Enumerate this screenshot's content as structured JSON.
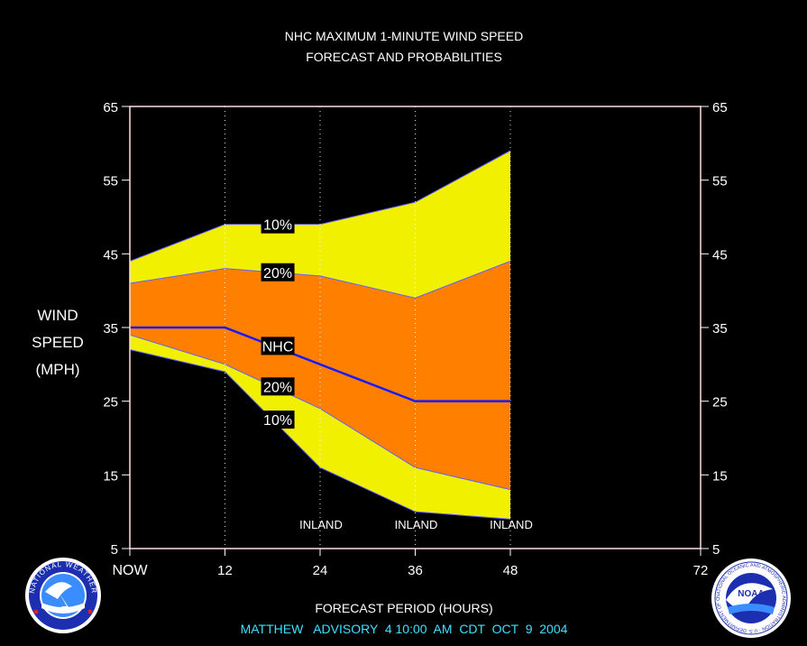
{
  "chart_data": {
    "type": "area",
    "title": "NHC MAXIMUM 1-MINUTE WIND SPEED",
    "subtitle": "FORECAST AND PROBABILITIES",
    "ylabel": [
      "WIND",
      "SPEED",
      "(MPH)"
    ],
    "xlabel": "FORECAST PERIOD (HOURS)",
    "footer": "MATTHEW   ADVISORY  4 10:00  AM  CDT  OCT  9  2004",
    "xlim": [
      0,
      72
    ],
    "ylim": [
      5,
      65
    ],
    "y_ticks": [
      5,
      15,
      25,
      35,
      45,
      55,
      65
    ],
    "x_ticks": [
      {
        "x": 0,
        "label": "NOW"
      },
      {
        "x": 12,
        "label": "12"
      },
      {
        "x": 24,
        "label": "24"
      },
      {
        "x": 36,
        "label": "36"
      },
      {
        "x": 48,
        "label": "48"
      },
      {
        "x": 72,
        "label": "72"
      }
    ],
    "x": [
      0,
      12,
      24,
      36,
      48
    ],
    "series": [
      {
        "name": "10%",
        "role": "upper",
        "values": [
          44,
          49,
          49,
          52,
          59
        ]
      },
      {
        "name": "20%",
        "role": "upper",
        "values": [
          41,
          43,
          42,
          39,
          44
        ]
      },
      {
        "name": "NHC",
        "role": "forecast",
        "values": [
          35,
          35,
          30,
          25,
          25
        ]
      },
      {
        "name": "20%",
        "role": "lower",
        "values": [
          34,
          30,
          24,
          16,
          13
        ]
      },
      {
        "name": "10%",
        "role": "lower",
        "values": [
          32,
          29,
          16,
          10,
          9
        ]
      }
    ],
    "band_labels": [
      {
        "text": "10%",
        "x": 16.5,
        "y": 49
      },
      {
        "text": "20%",
        "x": 16.5,
        "y": 42.5
      },
      {
        "text": "NHC",
        "x": 16.5,
        "y": 32.5
      },
      {
        "text": "20%",
        "x": 16.5,
        "y": 27
      },
      {
        "text": "10%",
        "x": 16.5,
        "y": 22.5
      }
    ],
    "annotations": [
      {
        "text": "INLAND",
        "x": 24
      },
      {
        "text": "INLAND",
        "x": 36
      },
      {
        "text": "INLAND",
        "x": 48
      }
    ],
    "colors": {
      "outer_band": "#f0f000",
      "inner_band": "#ff8000",
      "forecast_line": "#1a1aff",
      "background": "#000000",
      "frame": "#ffe0e0",
      "footer_text": "#40e0ff"
    },
    "logos": {
      "left": {
        "icon": "nws-logo-icon",
        "text": "NATIONAL WEATHER SERVICE"
      },
      "right": {
        "icon": "noaa-logo-icon",
        "text": "NATIONAL OCEANIC AND ATMOSPHERIC ADMINISTRATION · U.S. DEPARTMENT OF COMMERCE",
        "badge": "NOAA"
      }
    }
  }
}
